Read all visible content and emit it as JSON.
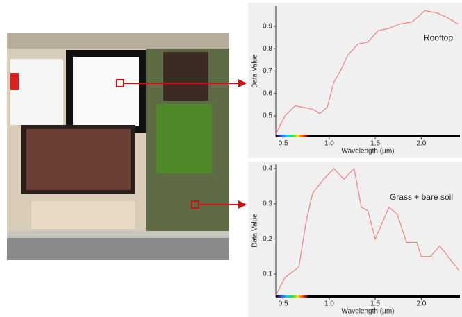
{
  "chart_data": [
    {
      "type": "line",
      "annotation": "Rooftop",
      "ylabel": "Data Value",
      "xlabel": "Wavelength (µm)",
      "color": "#f08080",
      "x": [
        0.42,
        0.52,
        0.63,
        0.82,
        0.9,
        0.98,
        1.05,
        1.12,
        1.2,
        1.31,
        1.42,
        1.53,
        1.64,
        1.76,
        1.9,
        2.04,
        2.17,
        2.28,
        2.4
      ],
      "values": [
        0.42,
        0.5,
        0.545,
        0.53,
        0.51,
        0.54,
        0.65,
        0.7,
        0.77,
        0.82,
        0.83,
        0.88,
        0.89,
        0.91,
        0.92,
        0.97,
        0.96,
        0.94,
        0.91
      ],
      "xlim": [
        0.42,
        2.42
      ],
      "ylim": [
        0.407,
        0.993
      ],
      "xticks": [
        0.5,
        {
          "value": 1,
          "label": "1.0"
        },
        1.5,
        {
          "value": 2,
          "label": "2.0"
        }
      ],
      "yticks": [
        0.5,
        0.6,
        0.7,
        0.8,
        0.9
      ]
    },
    {
      "type": "line",
      "annotation": "Grass + bare soil",
      "ylabel": "Data Value",
      "xlabel": "Wavelength (µm)",
      "color": "#f08080",
      "x": [
        0.42,
        0.52,
        0.67,
        0.75,
        0.82,
        0.94,
        1.05,
        1.16,
        1.27,
        1.35,
        1.42,
        1.5,
        1.65,
        1.74,
        1.84,
        1.95,
        2.0,
        2.1,
        2.2,
        2.32,
        2.41
      ],
      "values": [
        0.04,
        0.09,
        0.12,
        0.25,
        0.33,
        0.37,
        0.4,
        0.37,
        0.4,
        0.29,
        0.28,
        0.2,
        0.29,
        0.27,
        0.19,
        0.19,
        0.15,
        0.15,
        0.18,
        0.14,
        0.11
      ],
      "xlim": [
        0.42,
        2.42
      ],
      "ylim": [
        0.035,
        0.412
      ],
      "xticks": [
        0.5,
        {
          "value": 1,
          "label": "1.0"
        },
        1.5,
        {
          "value": 2,
          "label": "2.0"
        }
      ],
      "yticks": [
        0.1,
        0.2,
        0.3,
        0.4
      ]
    }
  ]
}
